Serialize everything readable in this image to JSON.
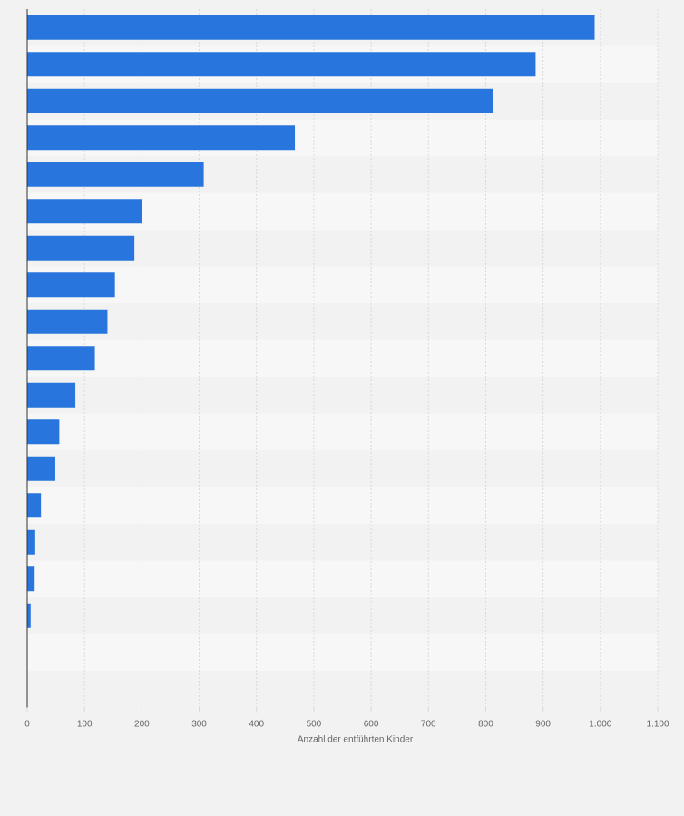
{
  "chart_data": {
    "type": "bar",
    "orientation": "horizontal",
    "title": "",
    "xlabel": "Anzahl der entführten Kinder",
    "ylabel": "",
    "categories": [
      "",
      "",
      "",
      "",
      "",
      "",
      "",
      "",
      "",
      "",
      "",
      "",
      "",
      "",
      "",
      "",
      "",
      "",
      ""
    ],
    "values": [
      990,
      887,
      813,
      467,
      308,
      200,
      187,
      153,
      140,
      118,
      84,
      56,
      49,
      24,
      14,
      13,
      6,
      0,
      0
    ],
    "xlim": [
      0,
      1100
    ],
    "xticks": [
      0,
      100,
      200,
      300,
      400,
      500,
      600,
      700,
      800,
      900,
      1000,
      1100
    ],
    "xtick_labels": [
      "0",
      "100",
      "200",
      "300",
      "400",
      "500",
      "600",
      "700",
      "800",
      "900",
      "1.000",
      "1.100"
    ],
    "grid": true,
    "legend": "none",
    "colors": {
      "bar": "#2876dd",
      "band_light": "#f7f7f7",
      "band_dark": "#f2f2f2",
      "grid": "#d9d9d9",
      "axis": "#333333",
      "text": "#666666"
    }
  }
}
